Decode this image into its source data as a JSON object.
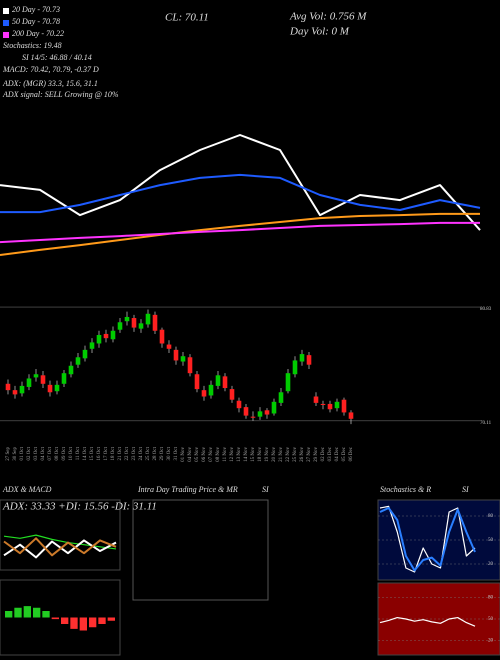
{
  "chart_data": [
    {
      "type": "candlestick",
      "annotations": [
        "20 Day - 70.73",
        "50 Day - 70.78",
        "200 Day - 70.22",
        "Stochastics: 19.48",
        "SI 14/5: 46.88 / 40.14",
        "MACD: 70.42, 70.79, -0.37 D",
        "ADX: (MGR) 33.3, 15.6, 31.1",
        "ADX signal: SELL Growing @ 10%",
        "CL: 70.11",
        "Avg Vol: 0.756 M",
        "Day Vol: 0 M",
        "Intra Day Trading Price & MR",
        "SI"
      ],
      "categories": [
        "27 Sep",
        "30 Sep",
        "01 Oct",
        "02 Oct",
        "03 Oct",
        "04 Oct",
        "07 Oct",
        "08 Oct",
        "09 Oct",
        "10 Oct",
        "11 Oct",
        "14 Oct",
        "15 Oct",
        "16 Oct",
        "17 Oct",
        "18 Oct",
        "21 Oct",
        "22 Oct",
        "23 Oct",
        "24 Oct",
        "25 Oct",
        "28 Oct",
        "29 Oct",
        "30 Oct",
        "31 Oct",
        "01 Nov",
        "04 Nov",
        "05 Nov",
        "06 Nov",
        "07 Nov",
        "08 Nov",
        "11 Nov",
        "12 Nov",
        "13 Nov",
        "14 Nov",
        "15 Nov",
        "18 Nov",
        "19 Nov",
        "20 Nov",
        "21 Nov",
        "22 Nov",
        "25 Nov",
        "26 Nov",
        "27 Nov",
        "29 Nov",
        "02 Dec",
        "03 Dec",
        "04 Dec",
        "05 Dec",
        "06 Dec"
      ],
      "open": [
        73.6,
        73.0,
        72.7,
        73.3,
        74.2,
        74.4,
        73.5,
        72.9,
        73.6,
        74.5,
        75.4,
        76.0,
        76.9,
        77.4,
        78.3,
        77.8,
        78.7,
        79.5,
        79.8,
        78.8,
        79.2,
        80.1,
        78.7,
        77.3,
        76.8,
        75.7,
        76.1,
        74.5,
        73.0,
        72.5,
        73.4,
        74.3,
        73.1,
        72.0,
        71.4,
        70.5,
        70.5,
        71.1,
        70.8,
        71.8,
        72.9,
        74.5,
        75.7,
        76.3,
        72.4,
        71.7,
        71.7,
        71.3,
        72.1,
        70.9
      ],
      "high": [
        74.0,
        73.4,
        73.8,
        74.5,
        75.0,
        74.8,
        73.9,
        73.9,
        74.9,
        75.7,
        76.5,
        77.2,
        77.9,
        78.6,
        78.7,
        79.0,
        79.8,
        80.4,
        80.1,
        79.7,
        80.6,
        80.4,
        78.9,
        77.7,
        77.1,
        76.6,
        76.4,
        74.8,
        73.4,
        73.9,
        74.8,
        74.6,
        73.4,
        72.3,
        71.7,
        71.0,
        71.4,
        71.3,
        72.2,
        73.2,
        75.0,
        76.2,
        76.8,
        76.6,
        72.8,
        72.0,
        72.0,
        72.2,
        72.3,
        71.1
      ],
      "low": [
        72.6,
        72.2,
        72.4,
        73.0,
        73.8,
        73.2,
        72.4,
        72.6,
        73.3,
        74.2,
        75.1,
        75.7,
        76.5,
        77.0,
        77.5,
        77.5,
        78.4,
        79.1,
        78.5,
        78.4,
        78.9,
        78.3,
        77.0,
        76.5,
        75.4,
        75.3,
        74.3,
        72.8,
        72.0,
        72.2,
        73.1,
        72.9,
        71.8,
        70.9,
        70.3,
        70.1,
        70.2,
        70.3,
        70.6,
        71.5,
        72.7,
        74.2,
        75.3,
        75.0,
        71.5,
        71.2,
        70.9,
        71.0,
        70.6,
        69.8
      ],
      "close": [
        73.0,
        72.6,
        73.4,
        74.1,
        74.5,
        73.6,
        72.8,
        73.5,
        74.6,
        75.3,
        76.1,
        76.8,
        77.5,
        78.2,
        77.9,
        78.6,
        79.4,
        79.9,
        78.9,
        79.3,
        80.2,
        78.6,
        77.4,
        76.9,
        75.8,
        76.2,
        74.6,
        73.1,
        72.4,
        73.5,
        74.4,
        73.2,
        72.1,
        71.3,
        70.6,
        70.4,
        71.0,
        70.7,
        71.9,
        72.8,
        74.6,
        75.8,
        76.4,
        75.4,
        71.8,
        71.6,
        71.2,
        71.9,
        70.9,
        70.3
      ],
      "up_color": "#00cc00",
      "down_color": "#ff2020",
      "ylim": [
        68.3,
        81.5
      ],
      "yticks": [
        80.83,
        70.11
      ],
      "grid": true
    },
    {
      "type": "line",
      "categories": [
        null,
        null,
        null,
        null,
        null,
        null,
        null,
        null,
        null,
        null,
        null,
        null,
        null
      ],
      "series": [
        {
          "color": "#ffffff",
          "values": [
            38.3,
            36.7,
            28.3,
            33.3,
            43.3,
            50,
            55,
            50,
            28.3,
            35,
            33.3,
            38.3,
            23.3
          ]
        },
        {
          "color": "#1e5bff",
          "values": [
            29.3,
            29.3,
            31.7,
            35,
            38.3,
            40.7,
            41.7,
            40.7,
            35,
            31.7,
            30,
            33.3,
            30.7
          ]
        },
        {
          "color": "#ff9a1a",
          "values": [
            15,
            16.7,
            18.3,
            20,
            21.7,
            23.3,
            24.7,
            26,
            27.3,
            28,
            28.3,
            28.7,
            28.7
          ]
        },
        {
          "color": "#ff33ff",
          "values": [
            19.3,
            20,
            20.7,
            21.3,
            22,
            22.7,
            23.3,
            24,
            24.7,
            25,
            25.3,
            25.7,
            25.7
          ]
        }
      ],
      "ylim": [
        0,
        100
      ]
    },
    {
      "type": "line",
      "title": "ADX & MACD",
      "subtitle": "ADX: 33.33  +DI: 15.56  -DI: 31.11",
      "categories": [
        null,
        null,
        null,
        null,
        null,
        null,
        null,
        null
      ],
      "series": [
        {
          "color": "#22dd22",
          "values": [
            30,
            28,
            31,
            27,
            24,
            22,
            20,
            18
          ]
        },
        {
          "color": "#ffffff",
          "values": [
            12,
            22,
            10,
            25,
            14,
            26,
            16,
            24
          ]
        },
        {
          "color": "#cc7a2a",
          "values": [
            25,
            14,
            28,
            12,
            24,
            14,
            26,
            20
          ]
        }
      ],
      "ylim": [
        0,
        50
      ]
    },
    {
      "type": "bar",
      "categories": [
        null,
        null,
        null,
        null,
        null,
        null,
        null,
        null,
        null,
        null,
        null,
        null
      ],
      "values": [
        0.2,
        0.3,
        0.35,
        0.3,
        0.2,
        -0.05,
        -0.2,
        -0.35,
        -0.4,
        -0.3,
        -0.2,
        -0.1
      ],
      "up_color": "#22cc22",
      "down_color": "#ff3030",
      "ylim": [
        -1,
        1
      ]
    },
    {
      "type": "line",
      "title": "Stochastics & R",
      "subtitle": "SI",
      "categories": [
        null,
        null,
        null,
        null,
        null,
        null,
        null,
        null,
        null,
        null,
        null,
        null
      ],
      "series": [
        {
          "color": "#ffffff",
          "values": [
            90,
            92,
            60,
            15,
            10,
            40,
            20,
            15,
            85,
            90,
            30,
            40
          ]
        },
        {
          "color": "#2a7fff",
          "values": [
            85,
            90,
            75,
            30,
            12,
            25,
            28,
            18,
            60,
            88,
            60,
            35
          ]
        }
      ],
      "ylim": [
        0,
        100
      ],
      "yticks": [
        80,
        50,
        20
      ],
      "grid": true,
      "background": "#000a3c"
    },
    {
      "type": "line",
      "categories": [
        null,
        null,
        null,
        null,
        null,
        null,
        null,
        null,
        null,
        null,
        null,
        null
      ],
      "series": [
        {
          "color": "#ffffff",
          "values": [
            45,
            48,
            52,
            50,
            47,
            49,
            46,
            44,
            50,
            52,
            45,
            40
          ]
        }
      ],
      "ylim": [
        0,
        100
      ],
      "yticks": [
        80,
        50,
        20
      ],
      "grid": true,
      "background": "#8a0000"
    }
  ]
}
